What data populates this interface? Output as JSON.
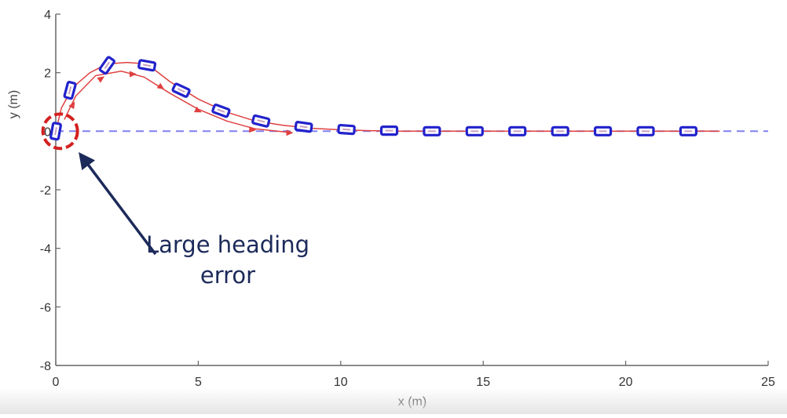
{
  "chart_data": {
    "type": "line",
    "title": "",
    "xlabel": "x (m)",
    "ylabel": "y (m)",
    "xlim": [
      0,
      25
    ],
    "ylim": [
      -8,
      4
    ],
    "xticks": [
      0,
      5,
      10,
      15,
      20,
      25
    ],
    "yticks": [
      4,
      2,
      0,
      -2,
      -4,
      -6,
      -8
    ],
    "xtick_labels": [
      "0",
      "5",
      "10",
      "15",
      "20",
      "25"
    ],
    "ytick_labels": [
      "4",
      "2",
      "0",
      "-2",
      "-4",
      "-6",
      "-8"
    ],
    "grid": false,
    "series": [
      {
        "role": "reference path",
        "style": "dashed",
        "color": "#8080f0",
        "x": [
          0,
          25
        ],
        "y": [
          0,
          0
        ]
      },
      {
        "role": "trajectory",
        "style": "solid",
        "color": "#e04040",
        "x": [
          0.0,
          0.2,
          0.6,
          1.2,
          1.8,
          2.5,
          3.2,
          4.0,
          5.0,
          6.0,
          7.0,
          8.0,
          9.0,
          10.0,
          11.0,
          12.0,
          14.0,
          18.0,
          22.0,
          23.3
        ],
        "y": [
          0.0,
          0.8,
          1.5,
          2.0,
          2.3,
          2.35,
          2.3,
          1.7,
          1.1,
          0.65,
          0.35,
          0.2,
          0.1,
          0.05,
          0.02,
          0.0,
          0.0,
          0.0,
          0.0,
          0.0
        ]
      },
      {
        "role": "trajectory",
        "style": "solid",
        "color": "#e04040",
        "x": [
          0.3,
          0.7,
          1.4,
          2.3,
          3.1,
          4.0,
          5.0,
          6.0,
          7.0,
          8.3
        ],
        "y": [
          0.4,
          1.2,
          1.9,
          2.05,
          1.85,
          1.3,
          0.75,
          0.35,
          0.08,
          -0.05
        ]
      }
    ],
    "vehicle_poses": [
      {
        "x": 0.0,
        "y": 0.0,
        "heading_deg": 80
      },
      {
        "x": 0.5,
        "y": 1.4,
        "heading_deg": 75
      },
      {
        "x": 1.8,
        "y": 2.25,
        "heading_deg": 55
      },
      {
        "x": 3.2,
        "y": 2.25,
        "heading_deg": -10
      },
      {
        "x": 4.4,
        "y": 1.4,
        "heading_deg": -25
      },
      {
        "x": 5.8,
        "y": 0.7,
        "heading_deg": -20
      },
      {
        "x": 7.2,
        "y": 0.35,
        "heading_deg": -14
      },
      {
        "x": 8.7,
        "y": 0.15,
        "heading_deg": -8
      },
      {
        "x": 10.2,
        "y": 0.06,
        "heading_deg": -4
      },
      {
        "x": 11.7,
        "y": 0.02,
        "heading_deg": 0
      },
      {
        "x": 13.2,
        "y": 0.0,
        "heading_deg": 0
      },
      {
        "x": 14.7,
        "y": 0.0,
        "heading_deg": 0
      },
      {
        "x": 16.2,
        "y": 0.0,
        "heading_deg": 0
      },
      {
        "x": 17.7,
        "y": 0.0,
        "heading_deg": 0
      },
      {
        "x": 19.2,
        "y": 0.0,
        "heading_deg": 0
      },
      {
        "x": 20.7,
        "y": 0.0,
        "heading_deg": 0
      },
      {
        "x": 22.2,
        "y": 0.0,
        "heading_deg": 0
      }
    ],
    "direction_arrows": [
      {
        "x": 0.6,
        "y": 0.9,
        "heading_deg": 60
      },
      {
        "x": 1.6,
        "y": 1.8,
        "heading_deg": 35
      },
      {
        "x": 2.7,
        "y": 1.95,
        "heading_deg": 0
      },
      {
        "x": 3.7,
        "y": 1.5,
        "heading_deg": -35
      },
      {
        "x": 5.0,
        "y": 0.7,
        "heading_deg": -25
      },
      {
        "x": 6.9,
        "y": 0.05,
        "heading_deg": -5
      },
      {
        "x": 8.2,
        "y": -0.05,
        "heading_deg": 0
      }
    ],
    "annotation": {
      "lines": [
        "Large heading",
        "error"
      ],
      "target": {
        "x": 0.1,
        "y": 0.0
      },
      "text_anchor_point": {
        "x": 3.5,
        "y": -4.2
      },
      "highlight_color": "#d42020",
      "text_color": "#1c2a5a"
    },
    "colors": {
      "vehicle": "#2222cc",
      "trajectory": "#e04040",
      "reference": "#8080f0",
      "axis": "#666666"
    }
  }
}
